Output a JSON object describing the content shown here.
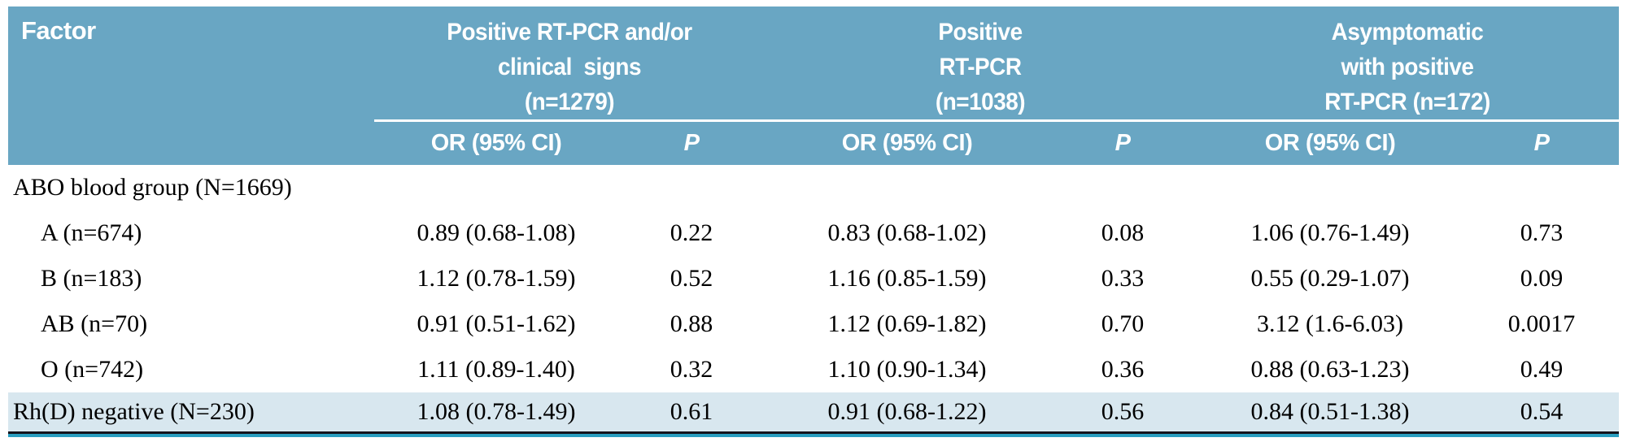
{
  "table": {
    "factor_header": "Factor",
    "groups": [
      {
        "name": "positive-rtpcr-or-clinical-signs",
        "lines": [
          "Positive RT-PCR and/or",
          "clinical  signs",
          "(n=1279)"
        ]
      },
      {
        "name": "positive-rtpcr",
        "lines": [
          "Positive",
          "RT-PCR",
          "(n=1038)"
        ]
      },
      {
        "name": "asymptomatic-positive-rtpcr",
        "lines": [
          "Asymptomatic",
          "with positive",
          "RT-PCR (n=172)"
        ]
      }
    ],
    "subheaders": {
      "or": "OR (95% CI)",
      "p": "P"
    },
    "rows": [
      {
        "factor": "ABO blood group (N=1669)",
        "indent": false,
        "highlight": false,
        "cells": [
          "",
          "",
          "",
          "",
          "",
          ""
        ]
      },
      {
        "factor": "A (n=674)",
        "indent": true,
        "highlight": false,
        "cells": [
          "0.89 (0.68-1.08)",
          "0.22",
          "0.83 (0.68-1.02)",
          "0.08",
          "1.06 (0.76-1.49)",
          "0.73"
        ]
      },
      {
        "factor": "B (n=183)",
        "indent": true,
        "highlight": false,
        "cells": [
          "1.12 (0.78-1.59)",
          "0.52",
          "1.16 (0.85-1.59)",
          "0.33",
          "0.55 (0.29-1.07)",
          "0.09"
        ]
      },
      {
        "factor": "AB (n=70)",
        "indent": true,
        "highlight": false,
        "cells": [
          "0.91 (0.51-1.62)",
          "0.88",
          "1.12 (0.69-1.82)",
          "0.70",
          "3.12 (1.6-6.03)",
          "0.0017"
        ]
      },
      {
        "factor": "O (n=742)",
        "indent": true,
        "highlight": false,
        "cells": [
          "1.11 (0.89-1.40)",
          "0.32",
          "1.10 (0.90-1.34)",
          "0.36",
          "0.88 (0.63-1.23)",
          "0.49"
        ]
      },
      {
        "factor": "Rh(D) negative (N=230)",
        "indent": false,
        "highlight": true,
        "cells": [
          "1.08 (0.78-1.49)",
          "0.61",
          "0.91 (0.68-1.22)",
          "0.56",
          "0.84 (0.51-1.38)",
          "0.54"
        ]
      }
    ],
    "colors": {
      "header_bg": "#69A6C3",
      "header_text": "#FFFFFF",
      "highlight_bg": "#D8E7EF",
      "rule_dark": "#14141C",
      "rule_teal": "#2A9EC0",
      "body_text": "#000000"
    }
  }
}
